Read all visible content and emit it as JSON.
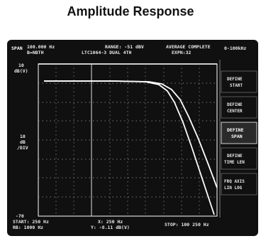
{
  "page": {
    "title": "Amplitude Response"
  },
  "status": {
    "span_label": "SPAN",
    "span_value": "100.000 Hz",
    "bandwidth": "B=NBTH",
    "range": "RANGE: -51 dBV",
    "filter": "LTC1064-3 DUAL 4TH",
    "average": "AVERAGE COMPLETE",
    "exp": "EXPN:32",
    "freq_range": "0-100kHz"
  },
  "plot": {
    "top_ref_value": "10",
    "top_ref_unit": "dB(V)",
    "scale_value": "10",
    "scale_unit": "dB",
    "scale_per": "/DIV",
    "bottom_ref": "-70"
  },
  "softkeys": [
    {
      "line1": "DEFINE",
      "line2": "START"
    },
    {
      "line1": "DEFINE",
      "line2": "CENTER"
    },
    {
      "line1": "DEFINE",
      "line2": "SPAN"
    },
    {
      "line1": "DEFINE",
      "line2": "TIME LEN"
    },
    {
      "line1": "FRQ AXIS",
      "line2": "LIN  LOG"
    }
  ],
  "footer": {
    "start": "START: 250 Hz",
    "rbw": "RB: 1000 Hz",
    "marker_x": "X: 250 Hz",
    "marker_y": "Y: -8.11 dB(V)",
    "stop": "STOP: 100 250 Hz"
  },
  "colors": {
    "screen": "#101010",
    "trace": "#ffffff",
    "grid": "#9a9a9a"
  }
}
